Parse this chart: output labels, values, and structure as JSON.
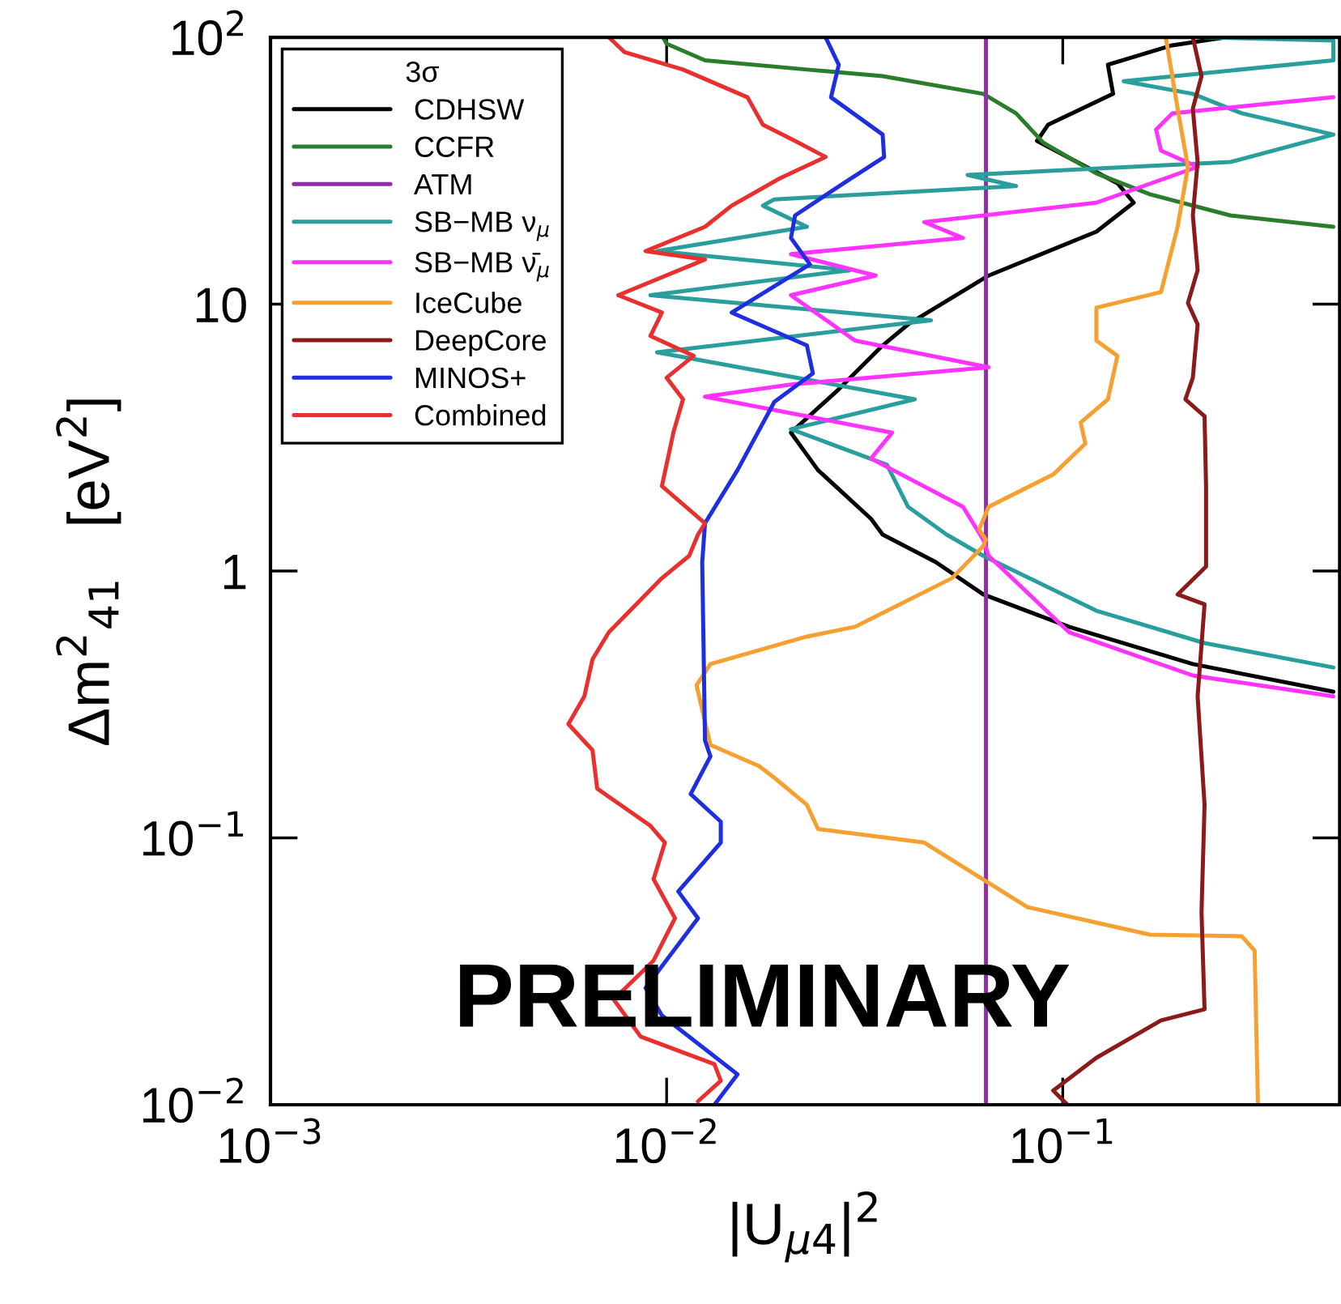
{
  "chart_data": {
    "type": "line",
    "xlabel": "|U$_{μ4}$|$^{2}$",
    "ylabel": "Δm$^{2}$$_{41}$   [eV$^{2}$]",
    "legend_title": "3σ",
    "legend": "top left",
    "log": "xy",
    "grid": false,
    "xlim": [
      0.001,
      0.5
    ],
    "ylim": [
      0.01,
      100
    ],
    "xticks": [
      {
        "value": 0.001,
        "label": "10$^{−3}$"
      },
      {
        "value": 0.01,
        "label": "10$^{−2}$"
      },
      {
        "value": 0.1,
        "label": "10$^{−1}$"
      }
    ],
    "yticks": [
      {
        "value": 0.01,
        "label": "10$^{−2}$"
      },
      {
        "value": 0.1,
        "label": "10$^{−1}$"
      },
      1,
      10,
      {
        "value": 100,
        "label": "10$^{2}$"
      }
    ],
    "annotations": [
      "PRELIMINARY"
    ],
    "series": [
      {
        "name": "CDHSW",
        "color": "#000000",
        "x": [
          0.258,
          0.189,
          0.13,
          0.134,
          0.0918,
          0.0861,
          0.1374,
          0.151,
          0.1216,
          0.065,
          0.0407,
          0.0351,
          0.0272,
          0.0206,
          0.0241,
          0.0328,
          0.0351,
          0.0478,
          0.063,
          0.1037,
          0.213,
          0.482
        ],
        "values": [
          100,
          93.3,
          78.9,
          61.4,
          47,
          40.9,
          28.4,
          24,
          18.7,
          12.8,
          8.4,
          7.0,
          4.8,
          3.3,
          2.39,
          1.57,
          1.37,
          1.08,
          0.817,
          0.618,
          0.448,
          0.353
        ]
      },
      {
        "name": "CCFR",
        "color": "#2a7d2a",
        "x": [
          0.0098,
          0.01,
          0.0125,
          0.0226,
          0.0351,
          0.063,
          0.0762,
          0.0893,
          0.1216,
          0.166,
          0.265,
          0.482
        ],
        "values": [
          100,
          94.6,
          82,
          75.7,
          71.5,
          61.4,
          51.9,
          40.3,
          30.9,
          25.8,
          21.5,
          19.5
        ]
      },
      {
        "name": "ATM",
        "color": "#8e2ea6",
        "x": [
          0.064,
          0.064
        ],
        "values": [
          0.01,
          100
        ]
      },
      {
        "name": "SB−MB ν$_{μ}$",
        "color": "#2a9d9d",
        "x": [
          0.228,
          0.482,
          0.482,
          0.1425,
          0.213,
          0.283,
          0.482,
          0.265,
          0.0575,
          0.0762,
          0.0187,
          0.0175,
          0.0226,
          0.00946,
          0.029,
          0.0091,
          0.0465,
          0.00946,
          0.0423,
          0.0206,
          0.036,
          0.0407,
          0.0509,
          0.063,
          0.1216,
          0.228,
          0.482
        ],
        "values": [
          100,
          97.2,
          82,
          68.5,
          61.4,
          51.9,
          43.2,
          34.1,
          30.5,
          27.7,
          24.7,
          23.4,
          19.5,
          15.8,
          13.4,
          10.8,
          8.7,
          6.6,
          4.4,
          3.4,
          2.5,
          1.74,
          1.37,
          1.14,
          0.71,
          0.537,
          0.435
        ]
      },
      {
        "name": "SB−MB ν̄$_{μ}$",
        "color": "#ff33ff",
        "x": [
          0.482,
          0.189,
          0.172,
          0.177,
          0.219,
          0.1216,
          0.0447,
          0.056,
          0.0206,
          0.0337,
          0.0206,
          0.0299,
          0.065,
          0.0206,
          0.0125,
          0.0371,
          0.0328,
          0.056,
          0.063,
          0.065,
          0.1037,
          0.213,
          0.482
        ],
        "values": [
          59.6,
          51.9,
          45.1,
          37.6,
          32.7,
          24,
          20.3,
          17.7,
          15.4,
          12.8,
          10.8,
          7.3,
          5.8,
          5.0,
          4.5,
          3.3,
          2.64,
          1.74,
          1.31,
          1.14,
          0.59,
          0.406,
          0.339
        ]
      },
      {
        "name": "IceCube",
        "color": "#f5a030",
        "x": [
          0.182,
          0.195,
          0.207,
          0.195,
          0.177,
          0.1216,
          0.1216,
          0.1374,
          0.13,
          0.111,
          0.114,
          0.0946,
          0.065,
          0.0615,
          0.064,
          0.063,
          0.0525,
          0.0299,
          0.0226,
          0.0129,
          0.0119,
          0.0129,
          0.0171,
          0.0187,
          0.0226,
          0.0241,
          0.0447,
          0.0815,
          0.166,
          0.283,
          0.305,
          0.311
        ],
        "values": [
          100,
          54,
          32.7,
          19.5,
          11.1,
          9.7,
          7.3,
          6.4,
          4.4,
          3.6,
          3.0,
          2.3,
          1.74,
          1.43,
          1.31,
          1.24,
          0.94,
          0.618,
          0.568,
          0.448,
          0.373,
          0.223,
          0.186,
          0.168,
          0.133,
          0.108,
          0.096,
          0.055,
          0.0434,
          0.0428,
          0.0378,
          0.01
        ]
      },
      {
        "name": "DeepCore",
        "color": "#8b1a1a",
        "x": [
          0.213,
          0.224,
          0.213,
          0.219,
          0.213,
          0.219,
          0.207,
          0.219,
          0.213,
          0.204,
          0.228,
          0.23,
          0.23,
          0.195,
          0.228,
          0.219,
          0.228,
          0.224,
          0.228,
          0.177,
          0.1216,
          0.0946,
          0.1028
        ],
        "values": [
          100,
          71.5,
          54,
          34.1,
          21.5,
          13.4,
          10.1,
          8.4,
          5.3,
          4.4,
          3.8,
          2.08,
          1.04,
          0.817,
          0.75,
          0.339,
          0.133,
          0.0527,
          0.0228,
          0.0207,
          0.015,
          0.0113,
          0.01
        ]
      },
      {
        "name": "MINOS+",
        "color": "#1f2fe0",
        "x": [
          0.0252,
          0.0272,
          0.026,
          0.0351,
          0.0354,
          0.028,
          0.0211,
          0.0206,
          0.023,
          0.0146,
          0.0226,
          0.0234,
          0.0187,
          0.0151,
          0.0125,
          0.0123,
          0.0125,
          0.0129,
          0.0115,
          0.0137,
          0.0137,
          0.0107,
          0.012,
          0.00885,
          0.00973,
          0.0151,
          0.0132
        ],
        "values": [
          100,
          78.9,
          59.6,
          43.2,
          35.6,
          28.4,
          21.5,
          17.7,
          14.1,
          9.3,
          7.0,
          5.5,
          4.3,
          2.39,
          1.51,
          1.08,
          0.232,
          0.202,
          0.146,
          0.115,
          0.096,
          0.063,
          0.05,
          0.0274,
          0.0216,
          0.013,
          0.01
        ]
      },
      {
        "name": "Combined",
        "color": "#e8302f",
        "x": [
          0.00715,
          0.00783,
          0.011,
          0.016,
          0.0175,
          0.0211,
          0.0252,
          0.0193,
          0.0146,
          0.0125,
          0.00885,
          0.0125,
          0.00755,
          0.00973,
          0.0091,
          0.0117,
          0.01,
          0.011,
          0.0104,
          0.00973,
          0.0125,
          0.012,
          0.0114,
          0.00973,
          0.00715,
          0.0065,
          0.0062,
          0.00565,
          0.0065,
          0.00668,
          0.0091,
          0.0099,
          0.00927,
          0.0105,
          0.00927,
          0.00735,
          0.0086,
          0.0132,
          0.0137,
          0.012
        ],
        "values": [
          100,
          88,
          75.7,
          59.6,
          47,
          40.9,
          35.6,
          29.6,
          23.4,
          19.5,
          15.8,
          14.7,
          10.8,
          9.3,
          7.6,
          6.4,
          5.3,
          4.4,
          3.3,
          2.08,
          1.51,
          1.37,
          1.14,
          0.94,
          0.59,
          0.467,
          0.339,
          0.267,
          0.213,
          0.153,
          0.111,
          0.096,
          0.07,
          0.05,
          0.0347,
          0.0248,
          0.018,
          0.0142,
          0.0123,
          0.0103
        ]
      }
    ]
  }
}
